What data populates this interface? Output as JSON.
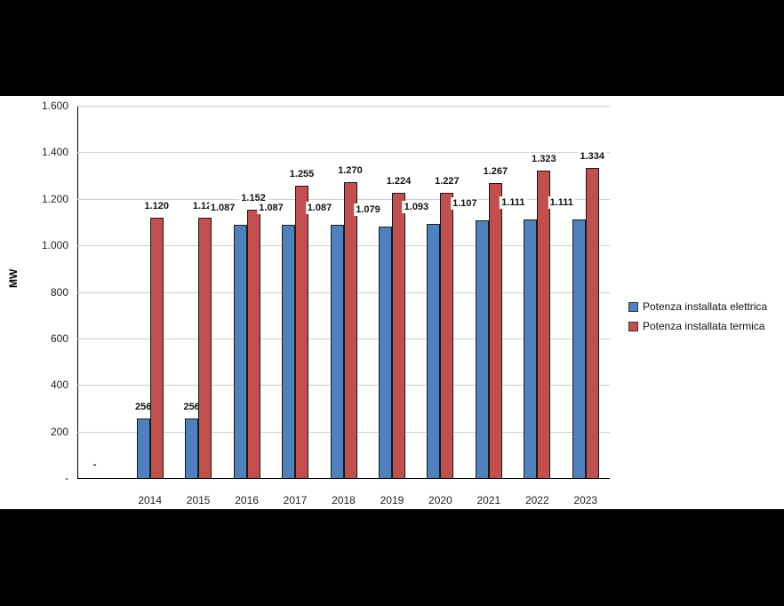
{
  "chart_data": {
    "type": "bar",
    "title": "",
    "xlabel": "",
    "ylabel": "MW",
    "ylim": [
      0,
      1600
    ],
    "yticks": [
      "-",
      "200",
      "400",
      "600",
      "800",
      "1.000",
      "1.200",
      "1.400",
      "1.600"
    ],
    "grid": true,
    "legend_position": "right",
    "categories": [
      "",
      "2014",
      "2015",
      "2016",
      "2017",
      "2018",
      "2019",
      "2020",
      "2021",
      "2022",
      "2023"
    ],
    "series": [
      {
        "name": "Potenza installata elettrica",
        "color": "#4f81bd",
        "values": [
          0,
          256,
          256,
          1087,
          1087,
          1087,
          1079,
          1093,
          1107,
          1111,
          1111
        ],
        "labels": [
          "-",
          "256",
          "256",
          "1.087",
          "1.087",
          "1.087",
          "1.079",
          "1.093",
          "1.107",
          "1.111",
          "1.111"
        ]
      },
      {
        "name": "Potenza installata termica",
        "color": "#c0504d",
        "values": [
          0,
          1120,
          1120,
          1152,
          1255,
          1270,
          1224,
          1227,
          1267,
          1323,
          1334
        ],
        "labels": [
          "",
          "1.120",
          "1.120",
          "1.152",
          "1.255",
          "1.270",
          "1.224",
          "1.227",
          "1.267",
          "1.323",
          "1.334"
        ]
      }
    ]
  },
  "legend": {
    "items": [
      "Potenza installata elettrica",
      "Potenza installata termica"
    ]
  }
}
